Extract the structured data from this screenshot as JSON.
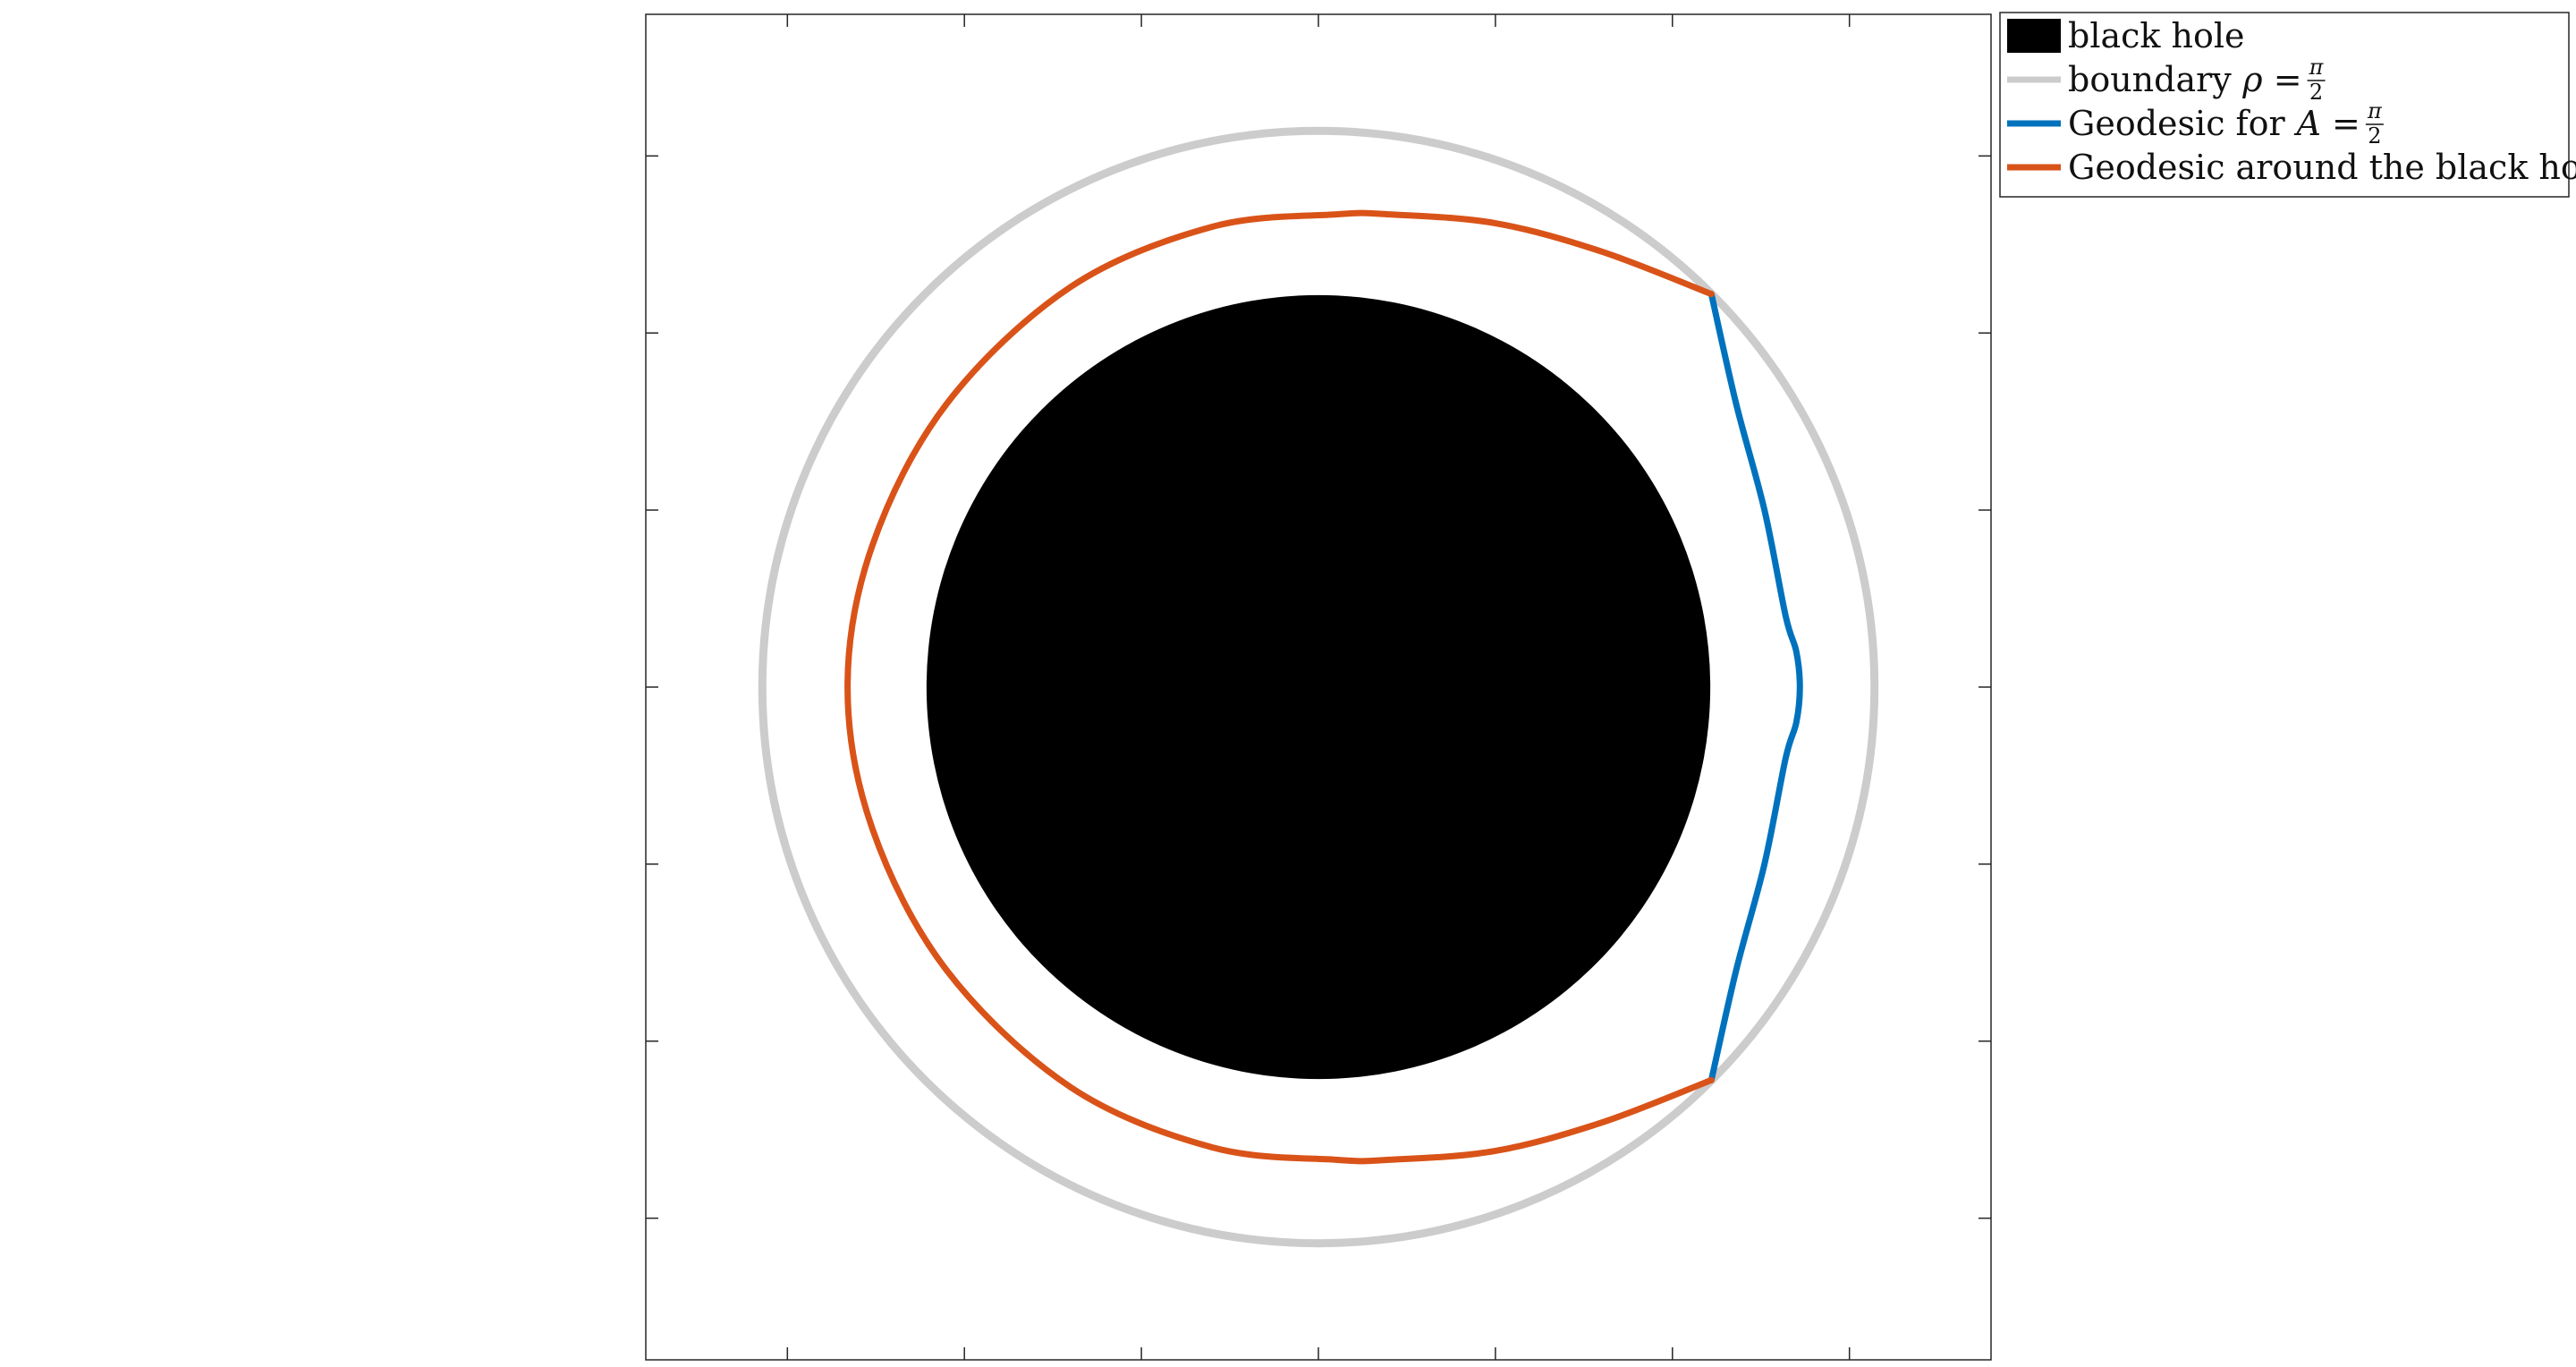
{
  "chart_data": {
    "type": "line",
    "title": "",
    "xlabel": "",
    "ylabel": "",
    "xlim": [
      -1.9,
      1.9
    ],
    "ylim": [
      -1.9,
      1.9
    ],
    "aspect": "equal",
    "grid": false,
    "tick_labels_shown": false,
    "x_ticks": [
      -1.5,
      -1.0,
      -0.5,
      0.0,
      0.5,
      1.0,
      1.5
    ],
    "y_ticks": [
      -1.5,
      -1.0,
      -0.5,
      0.0,
      0.5,
      1.0,
      1.5
    ],
    "legend_placement": "outside top-right",
    "series": [
      {
        "name": "black hole",
        "kind": "filled-disk",
        "color": "#000000",
        "center": [
          0,
          0
        ],
        "radius": 1.107
      },
      {
        "name": "boundary",
        "name_math": "ρ = π/2",
        "kind": "circle",
        "color": "#cccccc",
        "center": [
          0,
          0
        ],
        "radius": 1.5708
      },
      {
        "name": "Geodesic for",
        "name_math": "A = π/2",
        "kind": "curve",
        "color": "#0072bd",
        "x": [
          1.11,
          1.18,
          1.26,
          1.32,
          1.35,
          1.36,
          1.35,
          1.32,
          1.26,
          1.18,
          1.11
        ],
        "y": [
          1.11,
          0.8,
          0.5,
          0.2,
          0.1,
          0.0,
          -0.1,
          -0.2,
          -0.5,
          -0.8,
          -1.11
        ]
      },
      {
        "name": "Geodesic around the black hole",
        "kind": "curve",
        "color": "#d95319",
        "x": [
          1.11,
          0.8,
          0.5,
          0.2,
          0.05,
          -0.3,
          -0.7,
          -1.05,
          -1.26,
          -1.33,
          -1.26,
          -1.05,
          -0.7,
          -0.3,
          0.05,
          0.2,
          0.5,
          0.8,
          1.11
        ],
        "y": [
          1.11,
          1.23,
          1.31,
          1.335,
          1.335,
          1.3,
          1.13,
          0.8,
          0.4,
          0.0,
          -0.4,
          -0.8,
          -1.13,
          -1.3,
          -1.335,
          -1.335,
          -1.31,
          -1.23,
          -1.11
        ]
      }
    ],
    "legend": [
      {
        "label": "black hole",
        "math": "",
        "style": "patch",
        "color": "#000000"
      },
      {
        "label": "boundary",
        "math": "ρ =",
        "frac_num": "π",
        "frac_den": "2",
        "style": "line",
        "color": "#cccccc"
      },
      {
        "label": "Geodesic for",
        "math": "A =",
        "frac_num": "π",
        "frac_den": "2",
        "style": "line",
        "color": "#0072bd"
      },
      {
        "label": "Geodesic around the black hole",
        "math": "",
        "style": "line",
        "color": "#d95319"
      }
    ]
  }
}
